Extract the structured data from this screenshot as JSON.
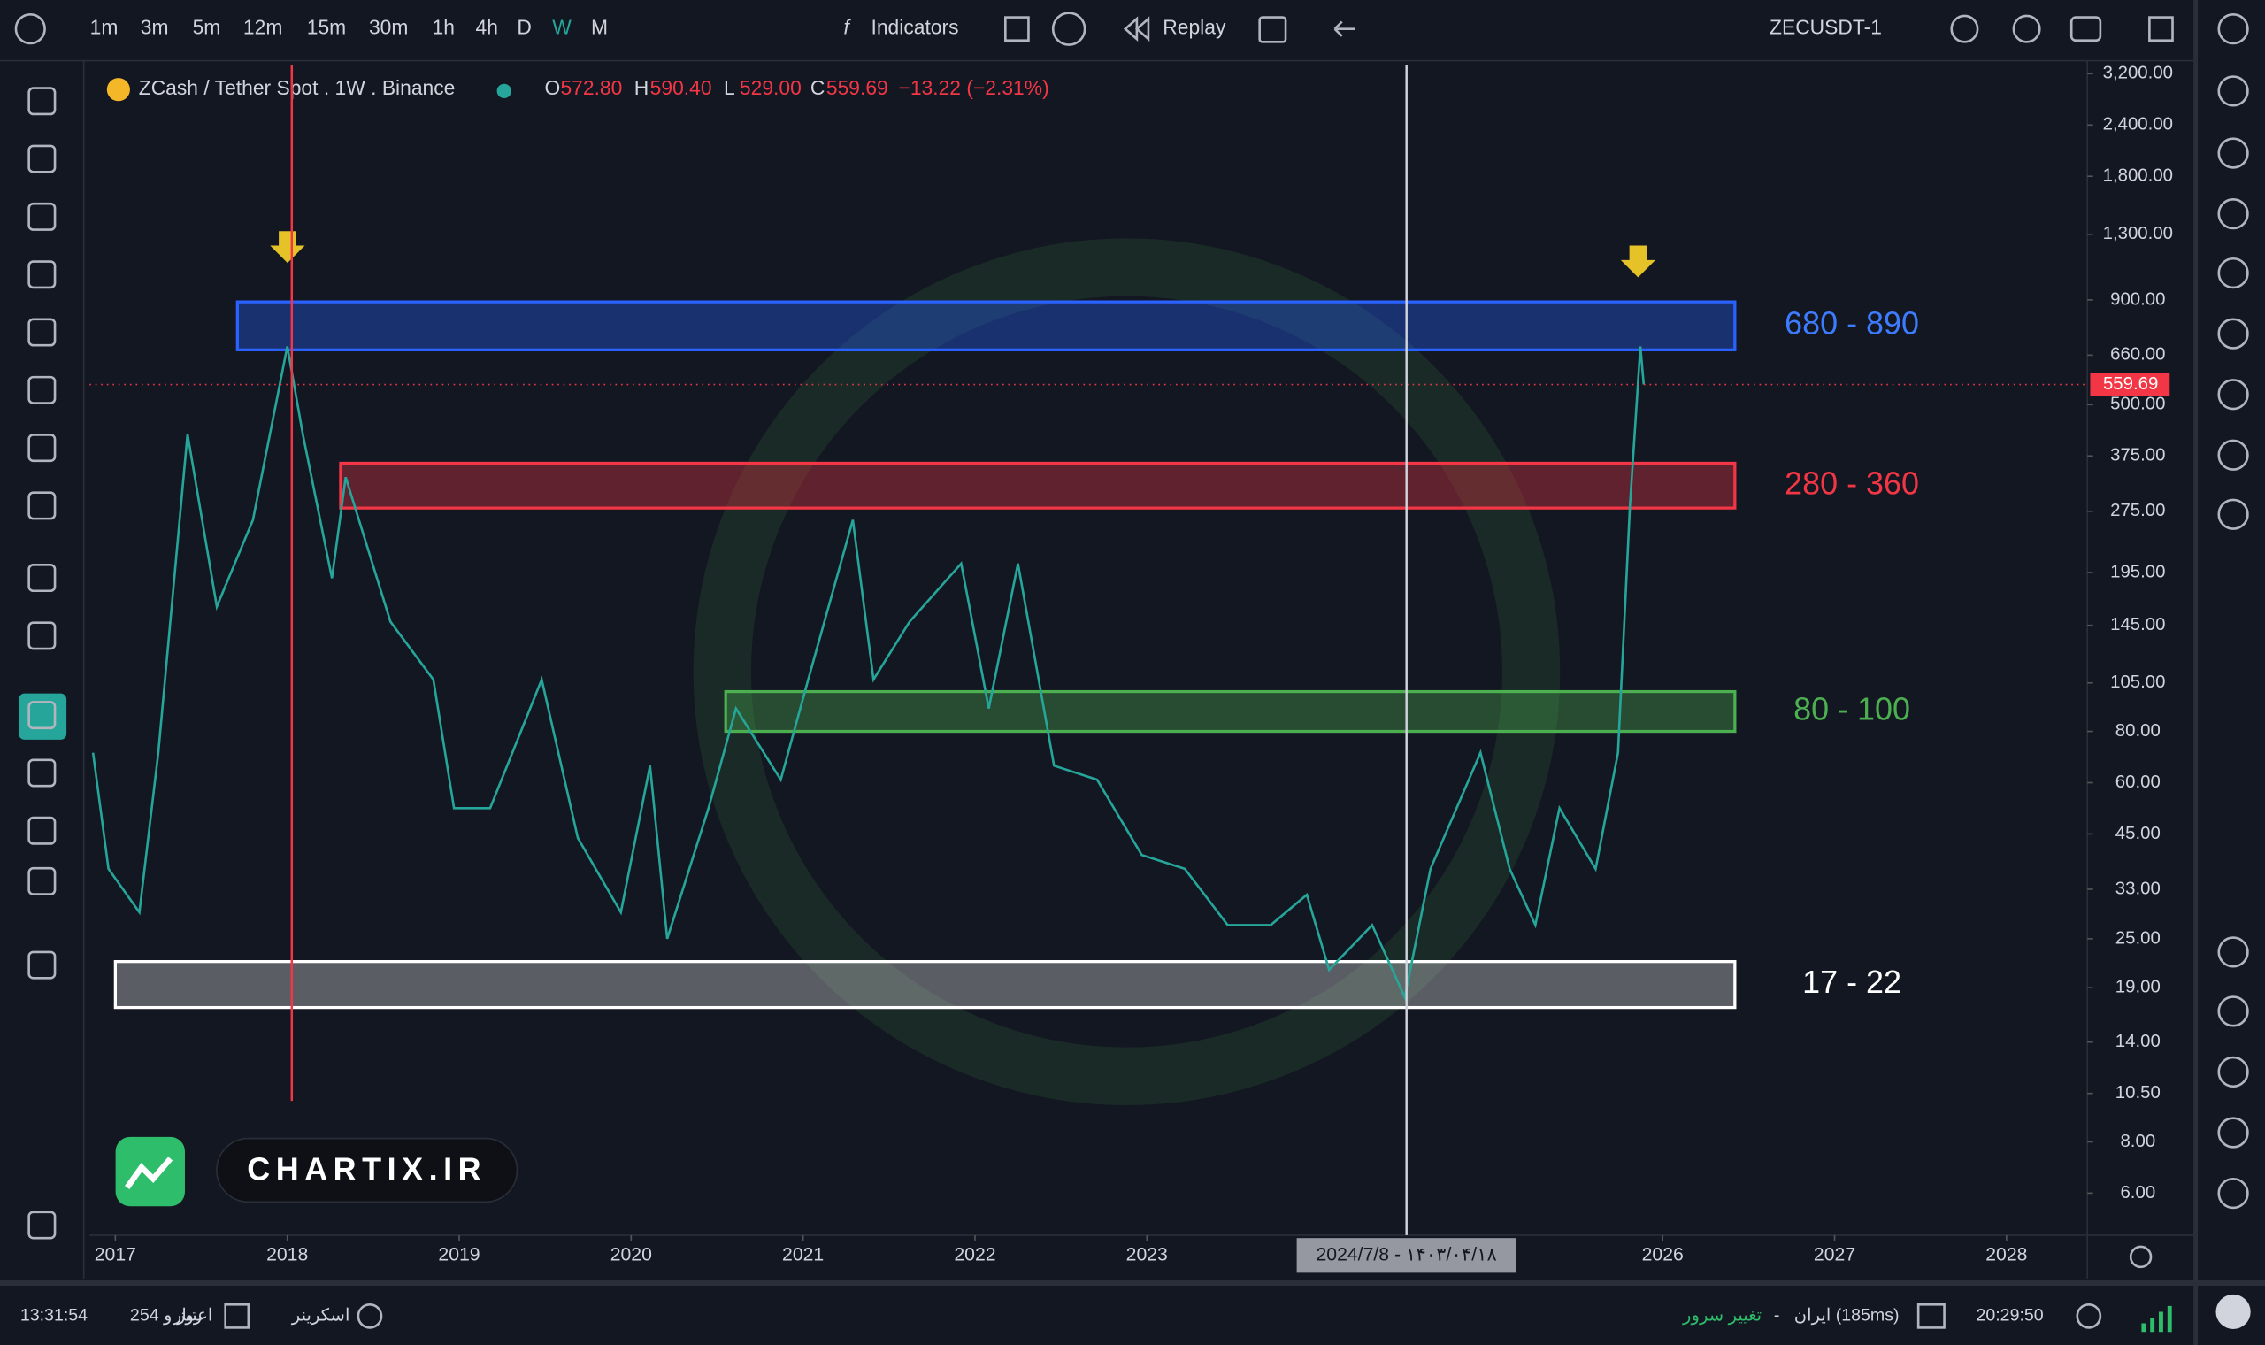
{
  "toolbar": {
    "timeframes": [
      "1m",
      "3m",
      "5m",
      "12m",
      "15m",
      "30m",
      "1h",
      "4h",
      "D",
      "W",
      "M"
    ],
    "indicators": "Indicators",
    "replay": "Replay",
    "symbol": "ZECUSDT-1"
  },
  "legend": {
    "title": "ZCash / Tether Spot . 1W . Binance",
    "ohlc": [
      {
        "key": "O",
        "value": "572.80"
      },
      {
        "key": "H",
        "value": "590.40"
      },
      {
        "key": "L",
        "value": "529.00"
      },
      {
        "key": "C",
        "value": "559.69"
      }
    ],
    "change": "−13.22 (−2.31%)"
  },
  "chart_data": {
    "type": "line",
    "log_scale": true,
    "grid": false,
    "x": [
      2016.87,
      2016.96,
      2017.14,
      2017.25,
      2017.42,
      2017.59,
      2017.8,
      2018.0,
      2018.09,
      2018.26,
      2018.34,
      2018.6,
      2018.85,
      2018.97,
      2019.18,
      2019.48,
      2019.69,
      2019.94,
      2020.11,
      2020.21,
      2020.45,
      2020.61,
      2020.87,
      2021.03,
      2021.29,
      2021.41,
      2021.62,
      2021.92,
      2022.08,
      2022.25,
      2022.46,
      2022.71,
      2022.97,
      2023.22,
      2023.47,
      2023.72,
      2023.93,
      2024.06,
      2024.31,
      2024.5,
      2024.65,
      2024.94,
      2025.11,
      2025.26,
      2025.4,
      2025.61,
      2025.74,
      2025.81,
      2025.87,
      2025.89
    ],
    "series": [
      {
        "color": "#26a69a",
        "values": [
          71,
          37,
          29,
          71,
          424,
          161,
          262,
          693,
          424,
          189,
          333,
          148,
          107,
          52,
          52,
          107,
          44,
          29,
          66,
          25,
          52,
          91,
          61,
          107,
          262,
          107,
          148,
          205,
          91,
          205,
          66,
          61,
          40,
          37,
          27,
          27,
          32,
          21,
          27,
          18,
          37,
          71,
          37,
          27,
          52,
          37,
          71,
          285,
          693,
          560
        ]
      }
    ],
    "xlim": [
      2016.85,
      2028.47
    ],
    "xticks": [
      2017,
      2018,
      2019,
      2020,
      2021,
      2022,
      2023,
      2026,
      2027,
      2028
    ],
    "ylim": [
      4.74,
      3360
    ],
    "yticks": [
      {
        "value": 3200,
        "label": "3,200.00"
      },
      {
        "value": 2400,
        "label": "2,400.00"
      },
      {
        "value": 1800,
        "label": "1,800.00"
      },
      {
        "value": 1300,
        "label": "1,300.00"
      },
      {
        "value": 900,
        "label": "900.00"
      },
      {
        "value": 660,
        "label": "660.00"
      },
      {
        "value": 500,
        "label": "500.00"
      },
      {
        "value": 375,
        "label": "375.00"
      },
      {
        "value": 275,
        "label": "275.00"
      },
      {
        "value": 195,
        "label": "195.00"
      },
      {
        "value": 145,
        "label": "145.00"
      },
      {
        "value": 105,
        "label": "105.00"
      },
      {
        "value": 80,
        "label": "80.00"
      },
      {
        "value": 60,
        "label": "60.00"
      },
      {
        "value": 45,
        "label": "45.00"
      },
      {
        "value": 33,
        "label": "33.00"
      },
      {
        "value": 25,
        "label": "25.00"
      },
      {
        "value": 19,
        "label": "19.00"
      },
      {
        "value": 14,
        "label": "14.00"
      },
      {
        "value": 10.5,
        "label": "10.50"
      },
      {
        "value": 8,
        "label": "8.00"
      },
      {
        "value": 6,
        "label": "6.00"
      }
    ],
    "zones": [
      {
        "name": "680 - 890",
        "low": 680,
        "high": 890,
        "start": 2017.71,
        "end": 2026.42,
        "color": "#2962ff"
      },
      {
        "name": "280 - 360",
        "low": 280,
        "high": 360,
        "start": 2018.31,
        "end": 2026.42,
        "color": "#f23645"
      },
      {
        "name": "80 - 100",
        "low": 80,
        "high": 100,
        "start": 2020.55,
        "end": 2026.42,
        "color": "#4caf50"
      },
      {
        "name": "17 - 22",
        "low": 17,
        "high": 22,
        "start": 2017.0,
        "end": 2026.42,
        "color": "#ffffff"
      }
    ],
    "last_price": 559.69,
    "crosshair": {
      "x": 2024.51,
      "label": "2024/7/8 - ۱۴۰۳/۰۴/۱۸"
    }
  },
  "watermark": "CHARTIX.IR",
  "status": {
    "time_left": "13:31:54",
    "days": "254 روز و",
    "credit": "اعتبار",
    "screener": "اسکرینر",
    "change_server": "تغییر سرور",
    "dash": "-",
    "server": "ایران (185ms)",
    "clock": "20:29:50"
  }
}
